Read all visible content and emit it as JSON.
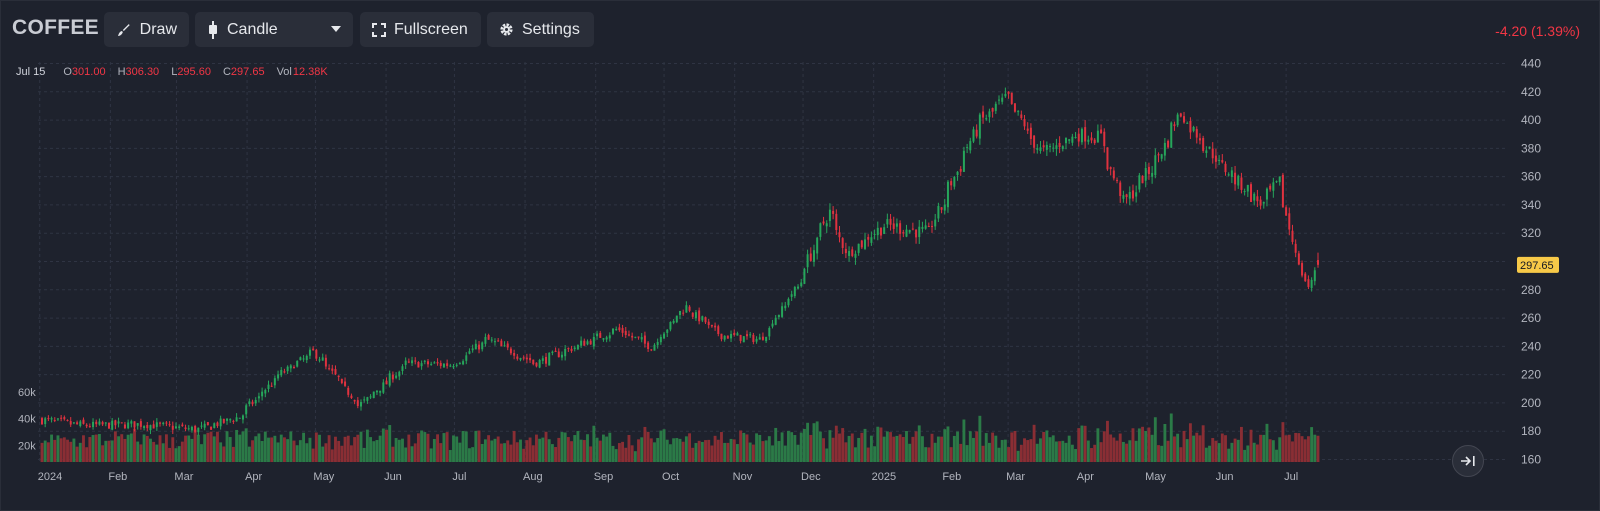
{
  "toolbar": {
    "symbol": "COFFEE",
    "draw_label": "Draw",
    "chart_type_label": "Candle",
    "fullscreen_label": "Fullscreen",
    "settings_label": "Settings",
    "change_text": "-4.20 (1.39%)"
  },
  "legend": {
    "date": "Jul 15",
    "o_label": "O",
    "o_value": "301.00",
    "h_label": "H",
    "h_value": "306.30",
    "l_label": "L",
    "l_value": "295.60",
    "c_label": "C",
    "c_value": "297.65",
    "vol_label": "Vol",
    "vol_value": "12.38K"
  },
  "icons": [
    "brush-icon",
    "candle-icon",
    "chevron-down-icon",
    "fullscreen-icon",
    "gear-icon",
    "go-to-latest-icon"
  ],
  "colors": {
    "background": "#1e222d",
    "up": "#26a65b",
    "down": "#e0323f",
    "up_volume": "#2b7a47",
    "down_volume": "#8a2e34",
    "last_price_badge": "#f7c948",
    "grid": "#2f3443"
  },
  "chart_data": {
    "type": "candlestick",
    "price_axis": {
      "ylim": [
        160,
        440
      ],
      "ticks": [
        160,
        180,
        200,
        220,
        240,
        260,
        280,
        300,
        320,
        340,
        360,
        380,
        400,
        420,
        440
      ]
    },
    "volume_axis": {
      "ylim": [
        0,
        60000
      ],
      "tick_labels": [
        "60k",
        "40k",
        "20k"
      ]
    },
    "time_axis_labels": [
      "2024",
      "Feb",
      "Mar",
      "Apr",
      "May",
      "Jun",
      "Jul",
      "Aug",
      "Sep",
      "Oct",
      "Nov",
      "Dec",
      "2025",
      "Feb",
      "Mar",
      "Apr",
      "May",
      "Jun",
      "Jul"
    ],
    "date_range": [
      "2024-01-02",
      "2025-07-15"
    ],
    "last_price": 297.65,
    "close_path": [
      {
        "date": "2024-01-02",
        "close": 188
      },
      {
        "date": "2024-01-20",
        "close": 184
      },
      {
        "date": "2024-02-15",
        "close": 185
      },
      {
        "date": "2024-03-10",
        "close": 181
      },
      {
        "date": "2024-03-28",
        "close": 190
      },
      {
        "date": "2024-04-15",
        "close": 220
      },
      {
        "date": "2024-04-30",
        "close": 236
      },
      {
        "date": "2024-05-20",
        "close": 198
      },
      {
        "date": "2024-06-10",
        "close": 228
      },
      {
        "date": "2024-06-30",
        "close": 227
      },
      {
        "date": "2024-07-15",
        "close": 245
      },
      {
        "date": "2024-08-05",
        "close": 228
      },
      {
        "date": "2024-08-20",
        "close": 238
      },
      {
        "date": "2024-09-10",
        "close": 252
      },
      {
        "date": "2024-09-25",
        "close": 240
      },
      {
        "date": "2024-10-10",
        "close": 268
      },
      {
        "date": "2024-10-25",
        "close": 248
      },
      {
        "date": "2024-11-12",
        "close": 245
      },
      {
        "date": "2024-11-28",
        "close": 282
      },
      {
        "date": "2024-12-12",
        "close": 335
      },
      {
        "date": "2024-12-20",
        "close": 305
      },
      {
        "date": "2025-01-05",
        "close": 326
      },
      {
        "date": "2025-01-25",
        "close": 320
      },
      {
        "date": "2025-02-15",
        "close": 396
      },
      {
        "date": "2025-02-28",
        "close": 416
      },
      {
        "date": "2025-03-15",
        "close": 376
      },
      {
        "date": "2025-03-31",
        "close": 390
      },
      {
        "date": "2025-04-10",
        "close": 388
      },
      {
        "date": "2025-04-20",
        "close": 340
      },
      {
        "date": "2025-05-05",
        "close": 372
      },
      {
        "date": "2025-05-15",
        "close": 405
      },
      {
        "date": "2025-06-01",
        "close": 370
      },
      {
        "date": "2025-06-20",
        "close": 340
      },
      {
        "date": "2025-06-28",
        "close": 358
      },
      {
        "date": "2025-07-03",
        "close": 315
      },
      {
        "date": "2025-07-10",
        "close": 282
      },
      {
        "date": "2025-07-15",
        "close": 297.65
      }
    ]
  }
}
